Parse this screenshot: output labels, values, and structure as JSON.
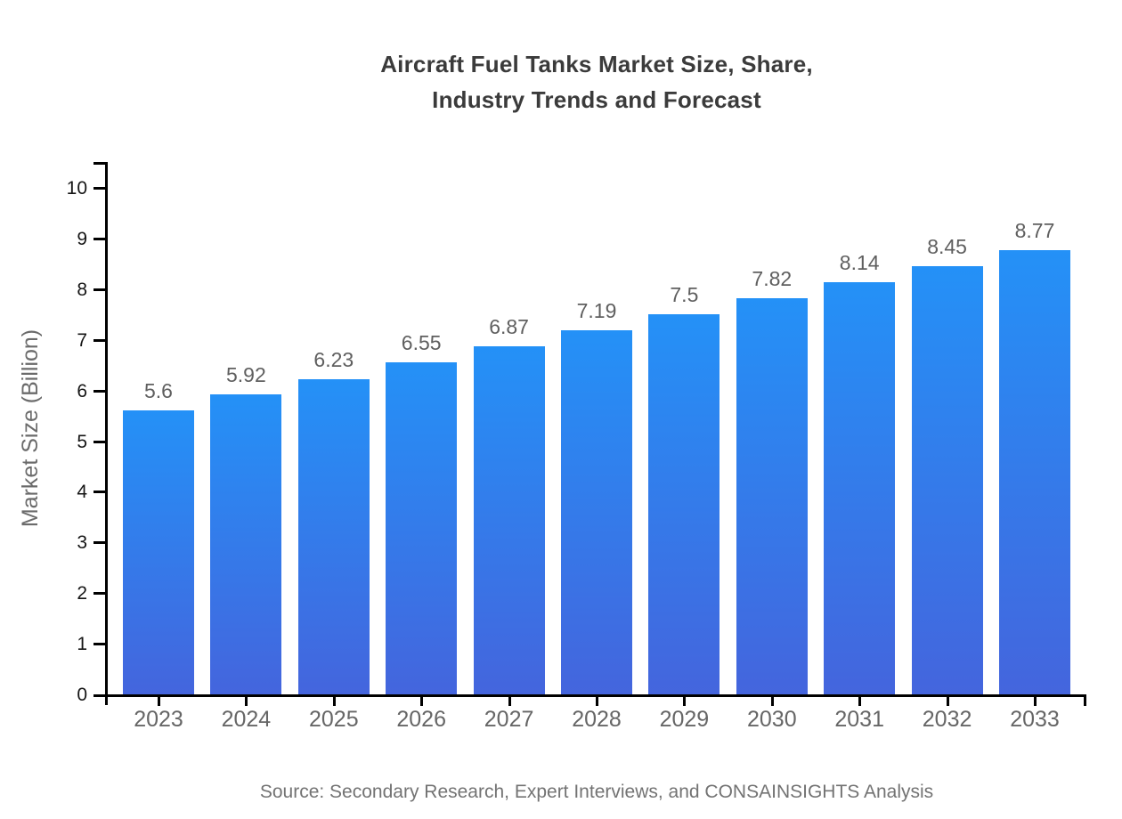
{
  "chart_data": {
    "type": "bar",
    "title": "Aircraft Fuel Tanks Market Size, Share, Industry Trends and Forecast",
    "title_lines": [
      "Aircraft Fuel Tanks Market Size, Share,",
      "Industry Trends and Forecast"
    ],
    "categories": [
      "2023",
      "2024",
      "2025",
      "2026",
      "2027",
      "2028",
      "2029",
      "2030",
      "2031",
      "2032",
      "2033"
    ],
    "values": [
      5.6,
      5.92,
      6.23,
      6.55,
      6.87,
      7.19,
      7.5,
      7.82,
      8.14,
      8.45,
      8.77
    ],
    "value_labels": [
      "5.6",
      "5.92",
      "6.23",
      "6.55",
      "6.87",
      "7.19",
      "7.5",
      "7.82",
      "8.14",
      "8.45",
      "8.77"
    ],
    "xlabel": "",
    "ylabel": "Market Size (Billion)",
    "ylim": [
      0,
      10
    ],
    "yticks": [
      0,
      1,
      2,
      3,
      4,
      5,
      6,
      7,
      8,
      9,
      10
    ],
    "grid": false,
    "legend": "none",
    "bar_gradient_top": "#2491f7",
    "bar_gradient_bottom": "#4465dd",
    "axis_color": "#000000",
    "source": "Source: Secondary Research, Expert Interviews, and CONSAINSIGHTS Analysis"
  }
}
